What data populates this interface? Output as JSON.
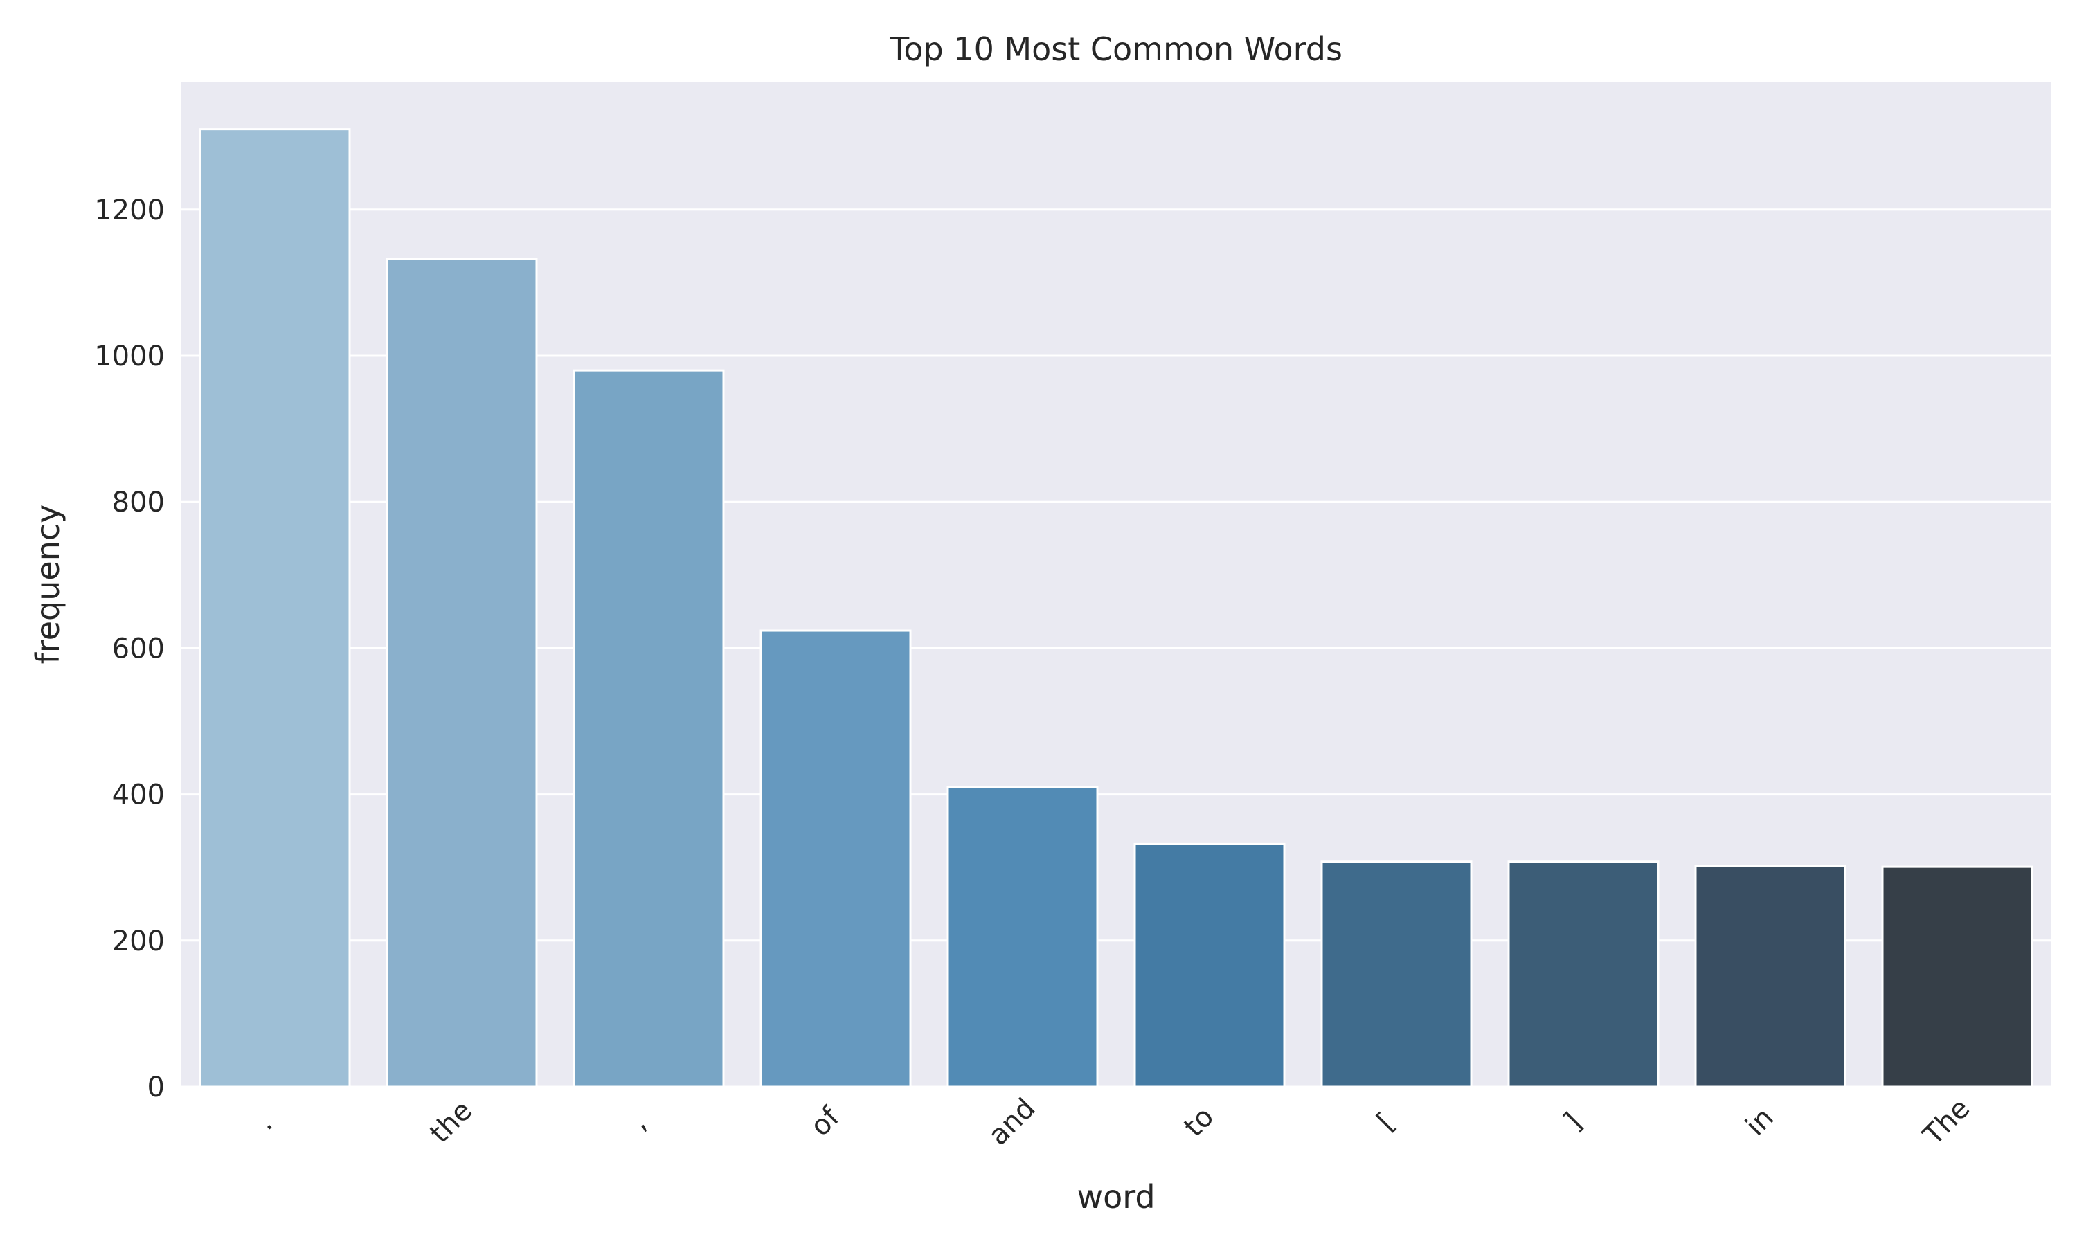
{
  "chart_data": {
    "type": "bar",
    "title": "Top 10 Most Common Words",
    "xlabel": "word",
    "ylabel": "frequency",
    "categories": [
      ".",
      "the",
      ",",
      "of",
      "and",
      "to",
      "[",
      "]",
      "in",
      "The"
    ],
    "values": [
      1310,
      1133,
      980,
      624,
      410,
      332,
      308,
      308,
      302,
      301
    ],
    "ylim": [
      0,
      1375
    ],
    "yticks": [
      0,
      200,
      400,
      600,
      800,
      1000,
      1200
    ],
    "grid": true,
    "x_tick_rotation_deg": 45,
    "colors": [
      "#9ebfd6",
      "#8ab0cc",
      "#78a5c5",
      "#6699bf",
      "#528bb5",
      "#447ba4",
      "#3f6b8c",
      "#3c5d77",
      "#394e62",
      "#363f48"
    ],
    "background_color": "#eaeaf2",
    "grid_color": "#ffffff"
  }
}
